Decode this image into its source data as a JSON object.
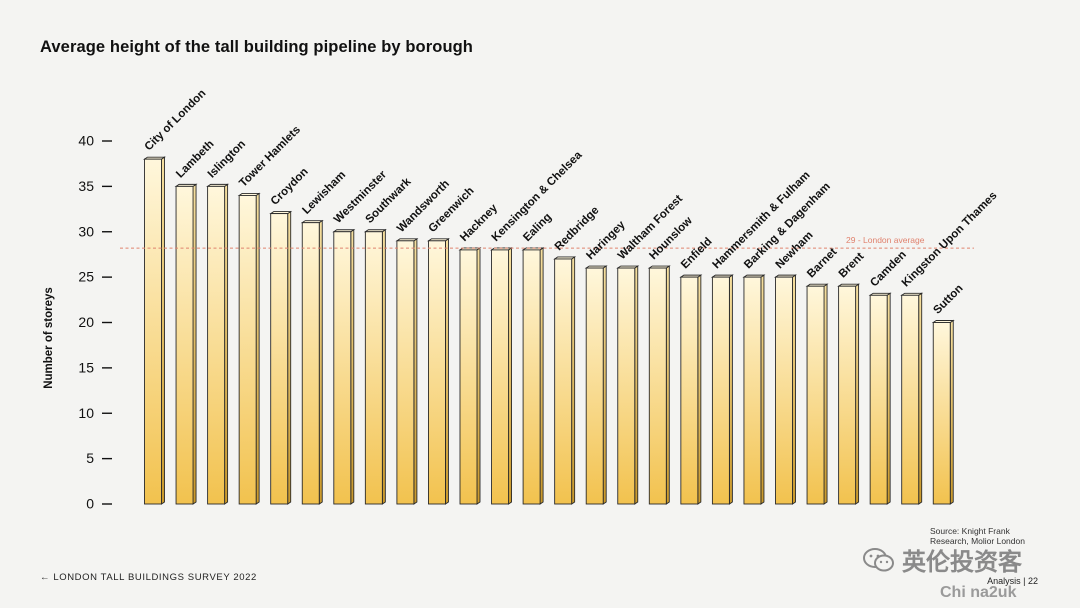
{
  "title": "Average height of the tall building pipeline by borough",
  "footer": {
    "left": "← LONDON TALL BUILDINGS SURVEY 2022",
    "right": "Analysis | 22"
  },
  "source": "Source: Knight Frank Research, Molior London",
  "watermark": {
    "main": "英伦投资客",
    "sub": "Chi na2uk"
  },
  "colors": {
    "bar_top": "#fff7dc",
    "bar_bottom": "#f2c24e",
    "bar_side": "#c9982a",
    "bar_outline": "#2a2a2a",
    "average_line": "#e0826e"
  },
  "chart_data": {
    "type": "bar",
    "title": "Average height of the tall building pipeline by borough",
    "ylabel": "Number of storeys",
    "xlabel": "",
    "ylim": [
      0,
      40
    ],
    "yticks": [
      0,
      5,
      10,
      15,
      20,
      25,
      30,
      35,
      40
    ],
    "categories": [
      "City of London",
      "Lambeth",
      "Islington",
      "Tower Hamlets",
      "Croydon",
      "Lewisham",
      "Westminster",
      "Southwark",
      "Wandsworth",
      "Greenwich",
      "Hackney",
      "Kensington & Chelsea",
      "Ealing",
      "Redbridge",
      "Haringey",
      "Waltham Forest",
      "Hounslow",
      "Enfield",
      "Hammersmith & Fulham",
      "Barking & Dagenham",
      "Newham",
      "Barnet",
      "Brent",
      "Camden",
      "Kingston Upon Thames",
      "Sutton"
    ],
    "values": [
      38,
      35,
      35,
      34,
      32,
      31,
      30,
      30,
      29,
      29,
      28,
      28,
      28,
      27,
      26,
      26,
      26,
      25,
      25,
      25,
      25,
      24,
      24,
      23,
      23,
      20
    ],
    "reference_line": {
      "value": 29,
      "label": "29 - London average"
    }
  }
}
